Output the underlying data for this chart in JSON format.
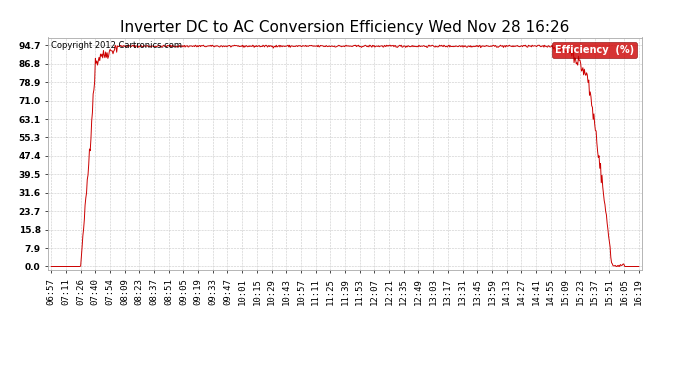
{
  "title": "Inverter DC to AC Conversion Efficiency Wed Nov 28 16:26",
  "copyright": "Copyright 2012 Cartronics.com",
  "legend_label": "Efficiency  (%)",
  "legend_bg": "#cc0000",
  "legend_fg": "#ffffff",
  "line_color": "#cc0000",
  "bg_color": "#ffffff",
  "grid_color": "#c8c8c8",
  "yticks": [
    0.0,
    7.9,
    15.8,
    23.7,
    31.6,
    39.5,
    47.4,
    55.3,
    63.1,
    71.0,
    78.9,
    86.8,
    94.7
  ],
  "ylim": [
    -1.5,
    98.0
  ],
  "xtick_labels": [
    "06:57",
    "07:11",
    "07:26",
    "07:40",
    "07:54",
    "08:09",
    "08:23",
    "08:37",
    "08:51",
    "09:05",
    "09:19",
    "09:33",
    "09:47",
    "10:01",
    "10:15",
    "10:29",
    "10:43",
    "10:57",
    "11:11",
    "11:25",
    "11:39",
    "11:53",
    "12:07",
    "12:21",
    "12:35",
    "12:49",
    "13:03",
    "13:17",
    "13:31",
    "13:45",
    "13:59",
    "14:13",
    "14:27",
    "14:41",
    "14:55",
    "15:09",
    "15:23",
    "15:37",
    "15:51",
    "16:05",
    "16:19"
  ],
  "title_fontsize": 11,
  "axis_fontsize": 6.5,
  "copyright_fontsize": 6,
  "legend_fontsize": 7
}
